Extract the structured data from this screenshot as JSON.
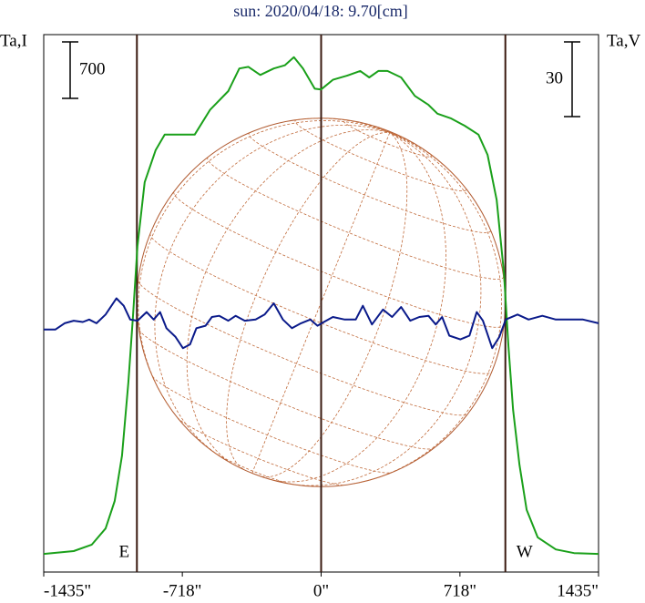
{
  "chart_data": {
    "type": "line",
    "title": "sun: 2020/04/18: 9.70[cm]",
    "y_label": "Ta,I",
    "y2_label": "Ta,V",
    "xlim": [
      -1435,
      1435
    ],
    "xticks": [
      {
        "value": -1435,
        "label": "-1435\""
      },
      {
        "value": -718,
        "label": "-718\""
      },
      {
        "value": 0,
        "label": "0\""
      },
      {
        "value": 718,
        "label": "718\""
      },
      {
        "value": 1435,
        "label": "1435\""
      }
    ],
    "ylim": [
      -200,
      6460
    ],
    "y2lim": [
      -101,
      115
    ],
    "i_scale": 700,
    "v_scale": 30,
    "solar_radius": 953,
    "limb_labels": [
      "E",
      "W"
    ],
    "series": [
      {
        "color": "#1aa01a",
        "axis": "y",
        "x": [
          -1435,
          -1280,
          -1186,
          -1115,
          -1068,
          -1030,
          -997,
          -974,
          -950,
          -913,
          -856,
          -809,
          -654,
          -574,
          -480,
          -423,
          -376,
          -315,
          -245,
          -188,
          -141,
          -94,
          -33,
          0,
          61,
          132,
          202,
          249,
          296,
          343,
          414,
          485,
          555,
          602,
          673,
          743,
          814,
          861,
          908,
          946,
          969,
          993,
          1026,
          1063,
          1120,
          1214,
          1308,
          1435
        ],
        "values": [
          25,
          60,
          140,
          340,
          680,
          1240,
          2150,
          2940,
          3840,
          4630,
          5030,
          5220,
          5220,
          5530,
          5760,
          6040,
          6060,
          5960,
          6040,
          6080,
          6180,
          6040,
          5790,
          5780,
          5900,
          5950,
          6010,
          5930,
          6010,
          6010,
          5930,
          5700,
          5590,
          5480,
          5420,
          5330,
          5220,
          4970,
          4410,
          3500,
          2600,
          1810,
          1130,
          570,
          230,
          80,
          35,
          25
        ]
      },
      {
        "color": "#0a1a8a",
        "axis": "y2",
        "x": [
          -1435,
          -1374,
          -1327,
          -1280,
          -1233,
          -1200,
          -1162,
          -1115,
          -1059,
          -1021,
          -988,
          -950,
          -903,
          -866,
          -833,
          -800,
          -753,
          -715,
          -678,
          -645,
          -598,
          -565,
          -527,
          -480,
          -442,
          -395,
          -339,
          -292,
          -245,
          -198,
          -151,
          -104,
          -56,
          -19,
          14,
          61,
          122,
          179,
          216,
          263,
          320,
          367,
          414,
          461,
          508,
          555,
          593,
          626,
          663,
          720,
          767,
          805,
          837,
          885,
          922,
          955,
          1016,
          1073,
          1144,
          1214,
          1355,
          1435
        ],
        "values": [
          -3.5,
          -3.5,
          -1,
          0,
          -0.5,
          0.5,
          -1,
          2.5,
          9,
          6,
          0.5,
          0,
          3.5,
          0.5,
          3.5,
          -3,
          -6.5,
          -11,
          -9.5,
          -3,
          -2,
          1.5,
          2,
          0,
          2,
          0,
          0.5,
          2.5,
          7,
          0.5,
          -3,
          -1,
          0.5,
          -2,
          -0.5,
          1.5,
          0.5,
          0.5,
          6,
          -1.5,
          4.5,
          1.5,
          5.5,
          0,
          1.5,
          2,
          -1.5,
          1.5,
          -6,
          -7.5,
          -6,
          3.5,
          0,
          -11,
          -6.5,
          0.5,
          2.5,
          0.5,
          2,
          0.5,
          0.5,
          -1
        ]
      }
    ]
  }
}
